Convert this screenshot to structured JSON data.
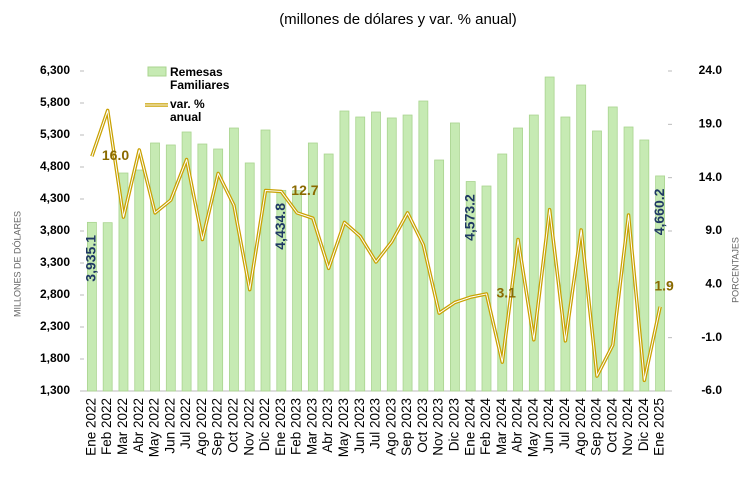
{
  "chart_data": {
    "type": "bar-line",
    "title": "(millones de dólares y var. % anual)",
    "y_label": "MILLONES DE DÓLARES",
    "y2_label": "PORCENTAJES",
    "categories": [
      "Ene 2022",
      "Feb 2022",
      "Mar 2022",
      "Abr 2022",
      "May 2022",
      "Jun 2022",
      "Jul 2022",
      "Ago 2022",
      "Sep 2022",
      "Oct 2022",
      "Nov 2022",
      "Dic 2022",
      "Ene 2023",
      "Feb 2023",
      "Mar 2023",
      "Abr 2023",
      "May 2023",
      "Jun 2023",
      "Jul 2023",
      "Ago 2023",
      "Sep 2023",
      "Oct 2023",
      "Nov 2023",
      "Dic 2023",
      "Ene 2024",
      "Feb 2024",
      "Mar 2024",
      "Abr 2024",
      "May 2024",
      "Jun 2024",
      "Jul 2024",
      "Ago 2024",
      "Sep 2024",
      "Oct 2024",
      "Nov 2024",
      "Dic 2024",
      "Ene 2025"
    ],
    "series": [
      {
        "name": "Remesas Familiares",
        "type": "bar",
        "color": "#c6eab3",
        "label_color": "#1f3864",
        "values": [
          3935.1,
          3930,
          4706,
          4753,
          5175,
          5144,
          5347,
          5159,
          5081,
          5409,
          4863,
          5378,
          4434.8,
          4430,
          5175,
          5003,
          5675,
          5581,
          5659,
          5566,
          5612,
          5831,
          4909,
          5488,
          4573.2,
          4503,
          5003,
          5409,
          5612,
          6206,
          5581,
          6081,
          5363,
          5738,
          5425,
          5222,
          4660.2
        ],
        "value_labels": [
          "3,935.1",
          null,
          null,
          null,
          null,
          null,
          null,
          null,
          null,
          null,
          null,
          null,
          "4,434.8",
          null,
          null,
          null,
          null,
          null,
          null,
          null,
          null,
          null,
          null,
          null,
          "4,573.2",
          null,
          null,
          null,
          null,
          null,
          null,
          null,
          null,
          null,
          null,
          null,
          "4,660.2"
        ]
      },
      {
        "name": "var. % anual",
        "type": "line",
        "axis": "y2",
        "color": "#c9a100",
        "label_color": "#8a6a00",
        "values": [
          16.0,
          20.3,
          10.3,
          16.6,
          10.7,
          11.9,
          15.7,
          8.2,
          14.4,
          11.4,
          3.5,
          12.8,
          12.7,
          10.7,
          10.2,
          5.5,
          9.8,
          8.5,
          6.1,
          8.0,
          10.7,
          7.7,
          1.3,
          2.3,
          2.8,
          3.1,
          -3.3,
          8.2,
          -1.2,
          11.0,
          -1.3,
          9.1,
          -4.6,
          -1.7,
          10.5,
          -5.0,
          1.9
        ],
        "value_labels": [
          "16.0",
          null,
          null,
          null,
          null,
          null,
          null,
          null,
          null,
          null,
          null,
          null,
          "12.7",
          null,
          null,
          null,
          null,
          null,
          null,
          null,
          null,
          null,
          null,
          null,
          null,
          "3.1",
          null,
          null,
          null,
          null,
          null,
          null,
          null,
          null,
          null,
          null,
          "1.9"
        ]
      }
    ],
    "ylim": [
      1300,
      6300
    ],
    "yticks": [
      {
        "value": 1300,
        "label": "1,300"
      },
      {
        "value": 1800,
        "label": "1,800"
      },
      {
        "value": 2300,
        "label": "2,300"
      },
      {
        "value": 2800,
        "label": "2,800"
      },
      {
        "value": 3300,
        "label": "3,300"
      },
      {
        "value": 3800,
        "label": "3,800"
      },
      {
        "value": 4300,
        "label": "4,300"
      },
      {
        "value": 4800,
        "label": "4,800"
      },
      {
        "value": 5300,
        "label": "5,300"
      },
      {
        "value": 5800,
        "label": "5,800"
      },
      {
        "value": 6300,
        "label": "6,300"
      }
    ],
    "y2lim": [
      -6,
      24
    ],
    "y2ticks": [
      {
        "value": -6,
        "label": "-6.0"
      },
      {
        "value": -1,
        "label": "-1.0"
      },
      {
        "value": 4,
        "label": "4.0"
      },
      {
        "value": 9,
        "label": "9.0"
      },
      {
        "value": 14,
        "label": "14.0"
      },
      {
        "value": 19,
        "label": "19.0"
      },
      {
        "value": 24,
        "label": "24.0"
      }
    ]
  }
}
